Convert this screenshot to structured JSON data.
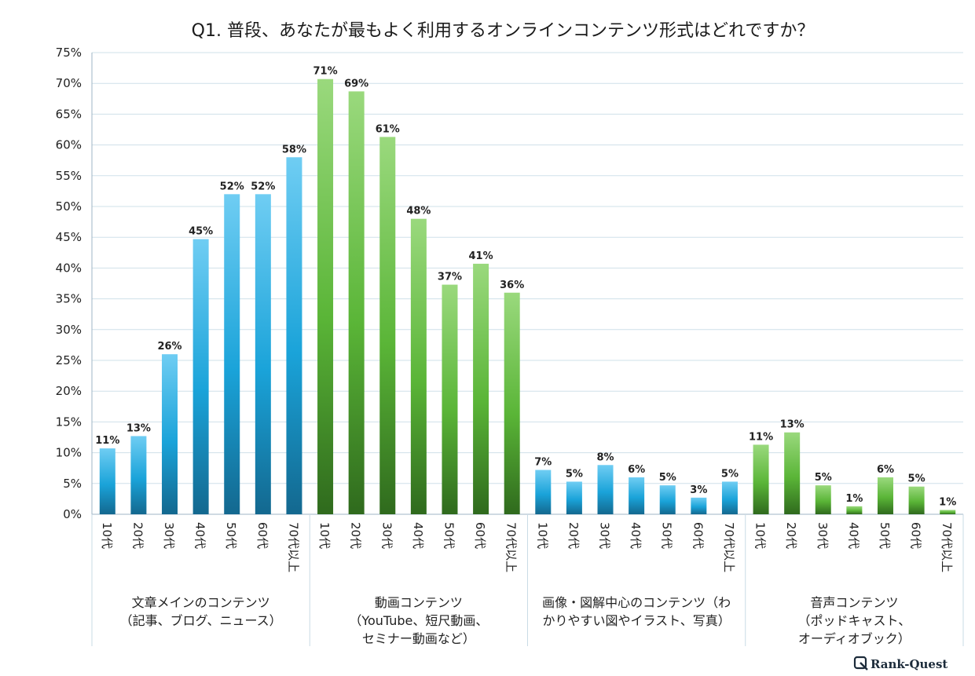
{
  "chart_data": {
    "type": "bar",
    "title": "Q1. 普段、あなたが最もよく利用するオンラインコンテンツ形式はどれですか？",
    "ylim": [
      0,
      75
    ],
    "yticks": [
      "0%",
      "5%",
      "10%",
      "15%",
      "20%",
      "25%",
      "30%",
      "35%",
      "40%",
      "45%",
      "50%",
      "55%",
      "60%",
      "65%",
      "70%",
      "75%"
    ],
    "age_labels": [
      "10代",
      "20代",
      "30代",
      "40代",
      "50代",
      "60代",
      "70代以上"
    ],
    "colors": {
      "blue_top": "#6fcdf3",
      "blue_mid": "#1aa3d9",
      "blue_bottom": "#13688f",
      "green_top": "#9ad97d",
      "green_mid": "#5ab537",
      "green_bottom": "#2f6a1d"
    },
    "groups": [
      {
        "name_lines": [
          "文章メインのコンテンツ",
          "（記事、ブログ、ニュース）"
        ],
        "palette": "blue",
        "values": [
          10.7,
          12.7,
          26,
          44.7,
          52,
          52,
          58
        ],
        "labels": [
          "11%",
          "13%",
          "26%",
          "45%",
          "52%",
          "52%",
          "58%"
        ]
      },
      {
        "name_lines": [
          "動画コンテンツ",
          "（YouTube、短尺動画、",
          "セミナー動画など）"
        ],
        "palette": "green",
        "values": [
          70.7,
          68.7,
          61.3,
          48,
          37.3,
          40.7,
          36
        ],
        "labels": [
          "71%",
          "69%",
          "61%",
          "48%",
          "37%",
          "41%",
          "36%"
        ]
      },
      {
        "name_lines": [
          "画像・図解中心のコンテンツ（わ",
          "かりやすい図やイラスト、写真）"
        ],
        "palette": "blue",
        "values": [
          7.2,
          5.3,
          8,
          6,
          4.7,
          2.7,
          5.3
        ],
        "labels": [
          "7%",
          "5%",
          "8%",
          "6%",
          "5%",
          "3%",
          "5%"
        ]
      },
      {
        "name_lines": [
          "音声コンテンツ",
          "（ポッドキャスト、",
          "オーディオブック）"
        ],
        "palette": "green",
        "values": [
          11.3,
          13.3,
          4.7,
          1.3,
          6,
          4.5,
          0.7
        ],
        "labels": [
          "11%",
          "13%",
          "5%",
          "1%",
          "6%",
          "5%",
          "1%"
        ]
      }
    ]
  },
  "logo": {
    "text": "Rank-Quest"
  }
}
